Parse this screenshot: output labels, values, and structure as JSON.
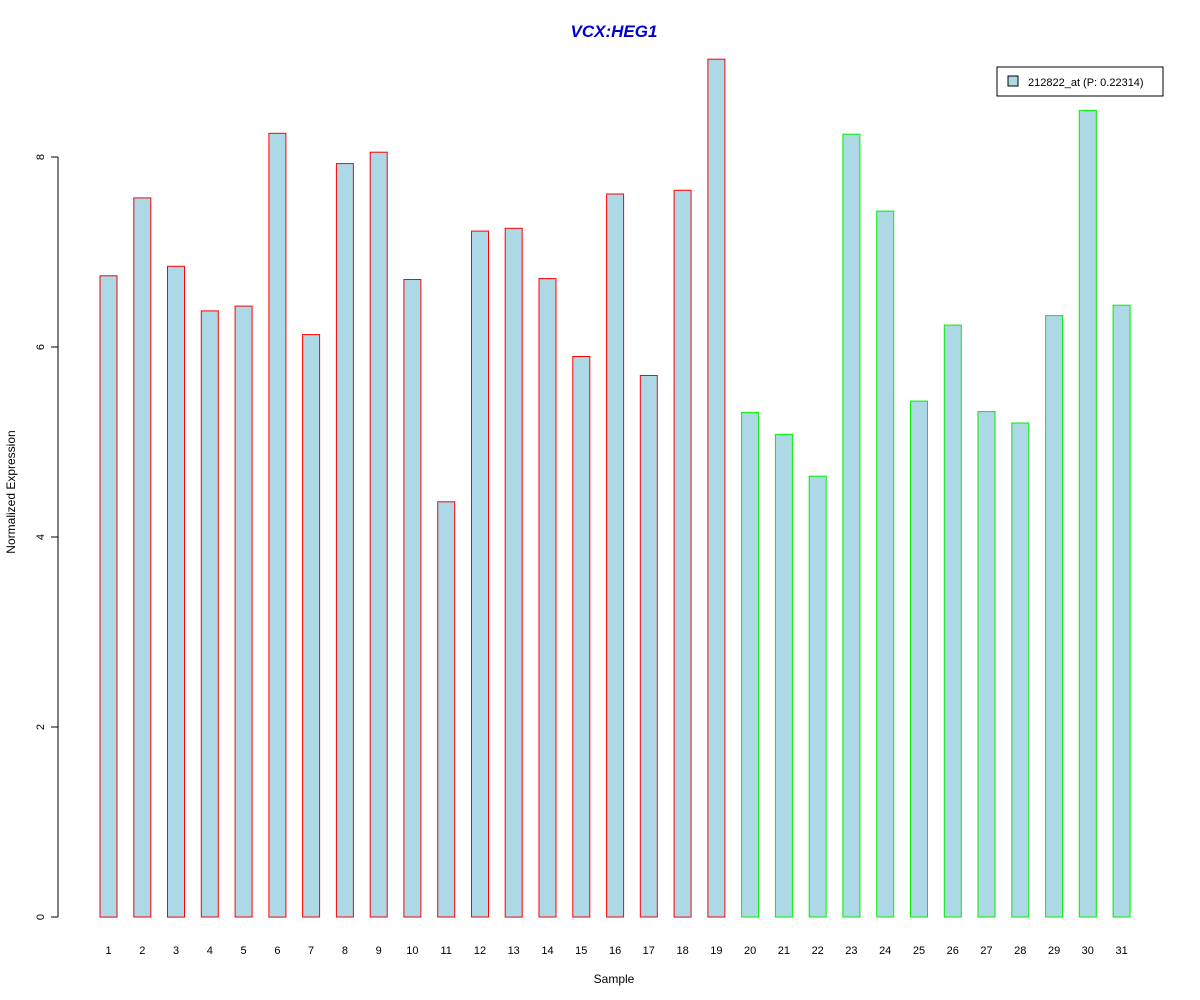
{
  "chart_data": {
    "type": "bar",
    "title": "VCX:HEG1",
    "xlabel": "Sample",
    "ylabel": "Normalized Expression",
    "categories": [
      "1",
      "2",
      "3",
      "4",
      "5",
      "6",
      "7",
      "8",
      "9",
      "10",
      "11",
      "12",
      "13",
      "14",
      "15",
      "16",
      "17",
      "18",
      "19",
      "20",
      "21",
      "22",
      "23",
      "24",
      "25",
      "26",
      "27",
      "28",
      "29",
      "30",
      "31"
    ],
    "series": [
      {
        "name": "212822_at (P: 0.22314)",
        "values": [
          6.75,
          7.57,
          6.85,
          6.38,
          6.43,
          8.25,
          6.13,
          7.93,
          8.05,
          6.71,
          4.37,
          7.22,
          7.25,
          6.72,
          5.9,
          7.61,
          5.7,
          7.65,
          9.03,
          5.31,
          5.08,
          4.64,
          8.24,
          7.43,
          5.43,
          6.23,
          5.32,
          5.2,
          6.33,
          8.49,
          6.44
        ]
      }
    ],
    "groups": [
      {
        "samples": "1-19",
        "border_color": "#ff0000"
      },
      {
        "samples": "20-31",
        "border_color": "#00ee00"
      }
    ],
    "bar_fill": "#add8e6",
    "yticks": [
      0,
      2,
      4,
      6,
      8
    ],
    "ylim": [
      0,
      9.03
    ],
    "grid": false,
    "legend_position": "top-right",
    "colors": {
      "title": "#0000cc",
      "axis": "#000000"
    }
  }
}
